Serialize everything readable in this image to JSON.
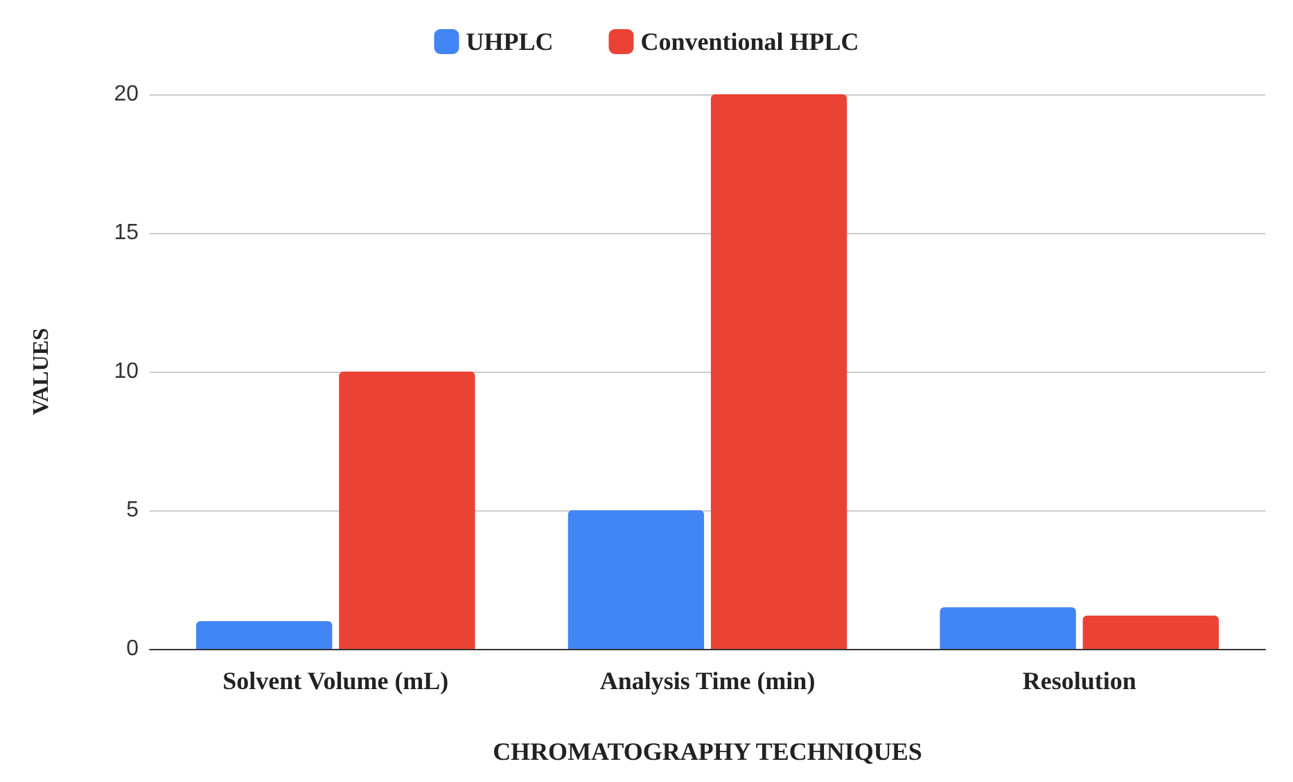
{
  "chart_data": {
    "type": "bar",
    "xlabel": "CHROMATOGRAPHY TECHNIQUES",
    "ylabel": "VALUES",
    "categories": [
      "Solvent Volume (mL)",
      "Analysis Time (min)",
      "Resolution"
    ],
    "series": [
      {
        "name": "UHPLC",
        "color": "#4285f4",
        "values": [
          1,
          5,
          1.5
        ]
      },
      {
        "name": "Conventional HPLC",
        "color": "#ea4335",
        "values": [
          10,
          20,
          1.2
        ]
      }
    ],
    "ylim": [
      0,
      20
    ],
    "yticks": [
      0,
      5,
      10,
      15,
      20
    ],
    "grid": "y",
    "legend": "top"
  }
}
